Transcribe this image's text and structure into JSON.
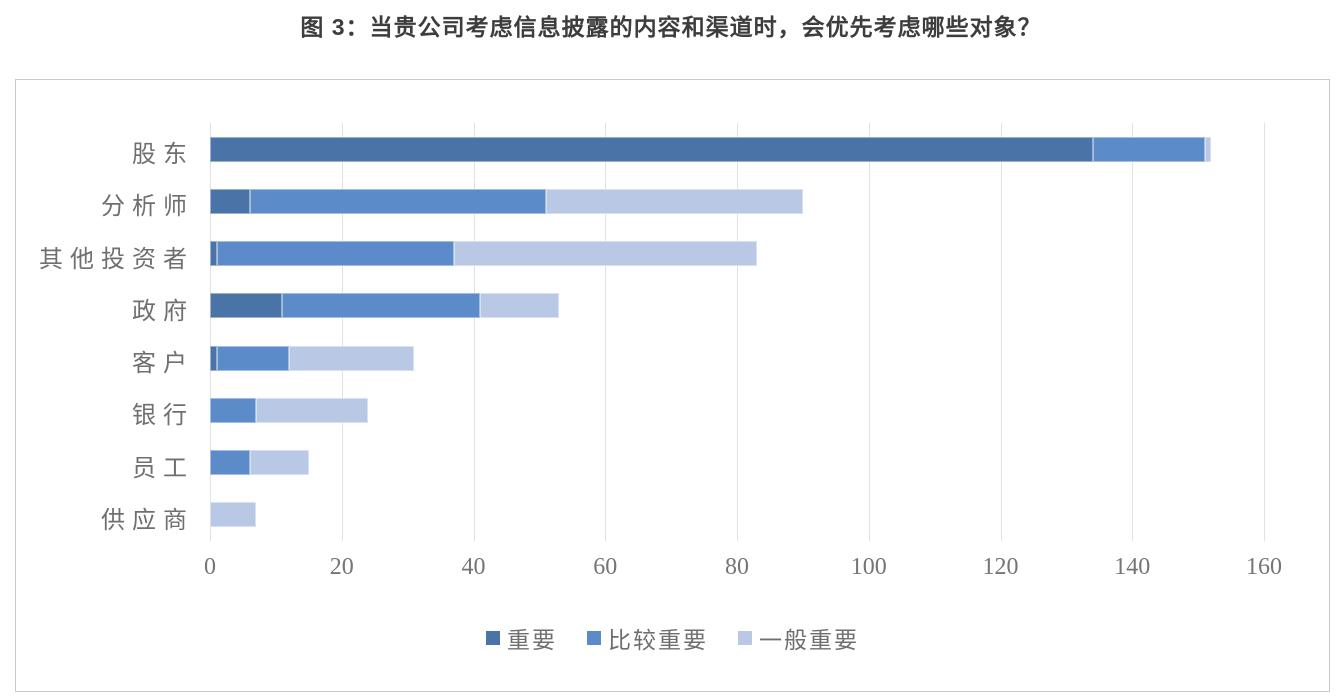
{
  "title": "图 3：当贵公司考虑信息披露的内容和渠道时，会优先考虑哪些对象？",
  "colors": {
    "series_important": "#4a73a8",
    "series_fairly_important": "#5b8bc9",
    "series_generally_important": "#b9c8e4",
    "gridline": "#e2e2e2",
    "frame_border": "#c9c9c9",
    "title_text": "#3d3d3d",
    "axis_text": "#6f6f6f"
  },
  "chart_data": {
    "type": "bar",
    "stacked": true,
    "orientation": "horizontal",
    "title": "图 3：当贵公司考虑信息披露的内容和渠道时，会优先考虑哪些对象？",
    "categories": [
      "股东",
      "分析师",
      "其他投资者",
      "政府",
      "客户",
      "银行",
      "员工",
      "供应商"
    ],
    "series": [
      {
        "name": "重要",
        "color": "#4a73a8",
        "values": [
          134,
          6,
          1,
          11,
          1,
          0,
          0,
          0
        ]
      },
      {
        "name": "比较重要",
        "color": "#5b8bc9",
        "values": [
          17,
          45,
          36,
          30,
          11,
          7,
          6,
          0
        ]
      },
      {
        "name": "一般重要",
        "color": "#b9c8e4",
        "values": [
          1,
          39,
          46,
          12,
          19,
          17,
          9,
          7
        ]
      }
    ],
    "totals": [
      152,
      90,
      83,
      53,
      31,
      24,
      15,
      7
    ],
    "x_ticks": [
      0,
      20,
      40,
      60,
      80,
      100,
      120,
      140,
      160
    ],
    "xlim": [
      0,
      160
    ],
    "xlabel": "",
    "ylabel": "",
    "grid": true,
    "legend": [
      "重要",
      "比较重要",
      "一般重要"
    ],
    "legend_position": "bottom"
  }
}
